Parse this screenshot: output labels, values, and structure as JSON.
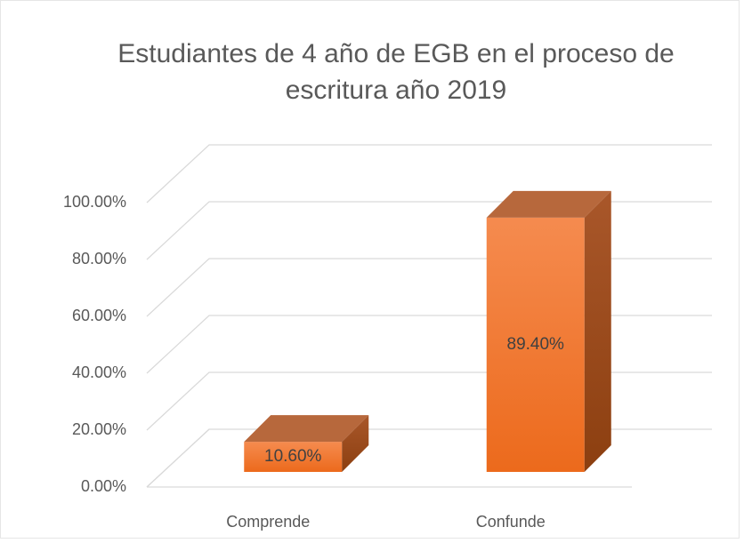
{
  "chart_data": {
    "type": "bar3d",
    "title": [
      "Estudiantes de 4 año de EGB en el proceso de",
      "escritura año 2019"
    ],
    "categories": [
      "Comprende",
      "Confunde"
    ],
    "values": [
      10.6,
      89.4
    ],
    "value_labels": [
      "10.60%",
      "89.40%"
    ],
    "color": "#f07a2e",
    "ylim": [
      0,
      100
    ],
    "yticks": [
      {
        "value": 0,
        "label": "0.00%"
      },
      {
        "value": 20,
        "label": "20.00%"
      },
      {
        "value": 40,
        "label": "40.00%"
      },
      {
        "value": 60,
        "label": "60.00%"
      },
      {
        "value": 80,
        "label": "80.00%"
      },
      {
        "value": 100,
        "label": "100.00%"
      }
    ],
    "grid": true
  }
}
